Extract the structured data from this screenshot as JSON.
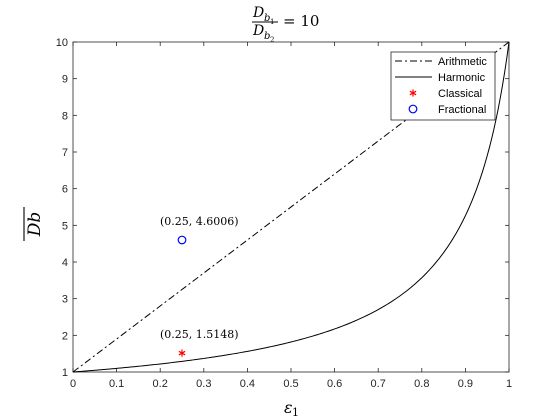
{
  "chart_data": {
    "type": "line",
    "title": {
      "numerator": "D",
      "numerator_sub": "b",
      "numerator_subsub": "1",
      "denominator": "D",
      "denominator_sub": "b",
      "denominator_subsub": "2",
      "rhs": "= 10"
    },
    "xlabel": {
      "symbol": "ε",
      "sub": "1"
    },
    "ylabel": "Db",
    "xlim": [
      0,
      1
    ],
    "ylim": [
      1,
      10
    ],
    "xticks": [
      0,
      0.1,
      0.2,
      0.3,
      0.4,
      0.5,
      0.6,
      0.7,
      0.8,
      0.9,
      1
    ],
    "xtick_labels": [
      "0",
      "0.1",
      "0.2",
      "0.3",
      "0.4",
      "0.5",
      "0.6",
      "0.7",
      "0.8",
      "0.9",
      "1"
    ],
    "yticks": [
      1,
      2,
      3,
      4,
      5,
      6,
      7,
      8,
      9,
      10
    ],
    "ytick_labels": [
      "1",
      "2",
      "3",
      "4",
      "5",
      "6",
      "7",
      "8",
      "9",
      "10"
    ],
    "grid": false,
    "legend_position": "top-right",
    "series": [
      {
        "name": "Arithmetic",
        "style": "dash-dot",
        "color": "#000000",
        "formula": "1 + 9x",
        "x": [
          0,
          1
        ],
        "y": [
          1,
          10
        ]
      },
      {
        "name": "Harmonic",
        "style": "solid",
        "color": "#000000",
        "formula": "10 / (10 - 9x)",
        "x": [
          0,
          0.1,
          0.2,
          0.3,
          0.4,
          0.5,
          0.6,
          0.7,
          0.8,
          0.9,
          0.95,
          1
        ],
        "y": [
          1,
          1.099,
          1.22,
          1.37,
          1.562,
          1.818,
          2.174,
          2.703,
          3.571,
          5.263,
          6.897,
          10
        ]
      },
      {
        "name": "Classical",
        "marker": "asterisk",
        "color": "#ff0000",
        "x": [
          0.25
        ],
        "y": [
          1.5148
        ]
      },
      {
        "name": "Fractional",
        "marker": "circle",
        "color": "#0000ff",
        "x": [
          0.25
        ],
        "y": [
          4.6006
        ]
      }
    ],
    "annotations": [
      {
        "text": "(0.25, 1.5148)",
        "x": 0.25,
        "y": 1.5148
      },
      {
        "text": "(0.25, 4.6006)",
        "x": 0.25,
        "y": 4.6006
      }
    ],
    "colors": {
      "axis": "#262626",
      "classical": "#ff0000",
      "fractional": "#0000ff"
    }
  }
}
